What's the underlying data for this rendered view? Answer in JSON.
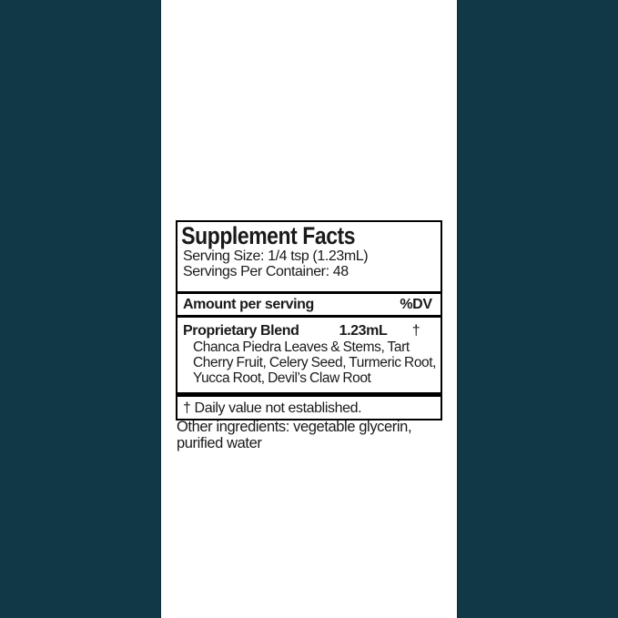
{
  "colors": {
    "side_bar": "#113847",
    "panel_border": "#000000",
    "background": "#ffffff",
    "text": "#1a1a1a"
  },
  "panel": {
    "title": "Supplement Facts",
    "serving_size": "Serving Size: 1/4 tsp (1.23mL)",
    "servings_per_container": "Servings Per Container: 48",
    "header": {
      "amount_label": "Amount per serving",
      "dv_label": "%DV"
    },
    "blend": {
      "name": "Proprietary Blend",
      "amount": "1.23mL",
      "dv_symbol": "†",
      "ingredients": "Chanca Piedra Leaves & Stems, Tart Cherry Fruit, Celery Seed, Turmeric Root, Yucca Root, Devil’s Claw Root"
    },
    "footnote": "† Daily value not established."
  },
  "other_ingredients": "Other ingredients: vegetable glycerin, purified water"
}
